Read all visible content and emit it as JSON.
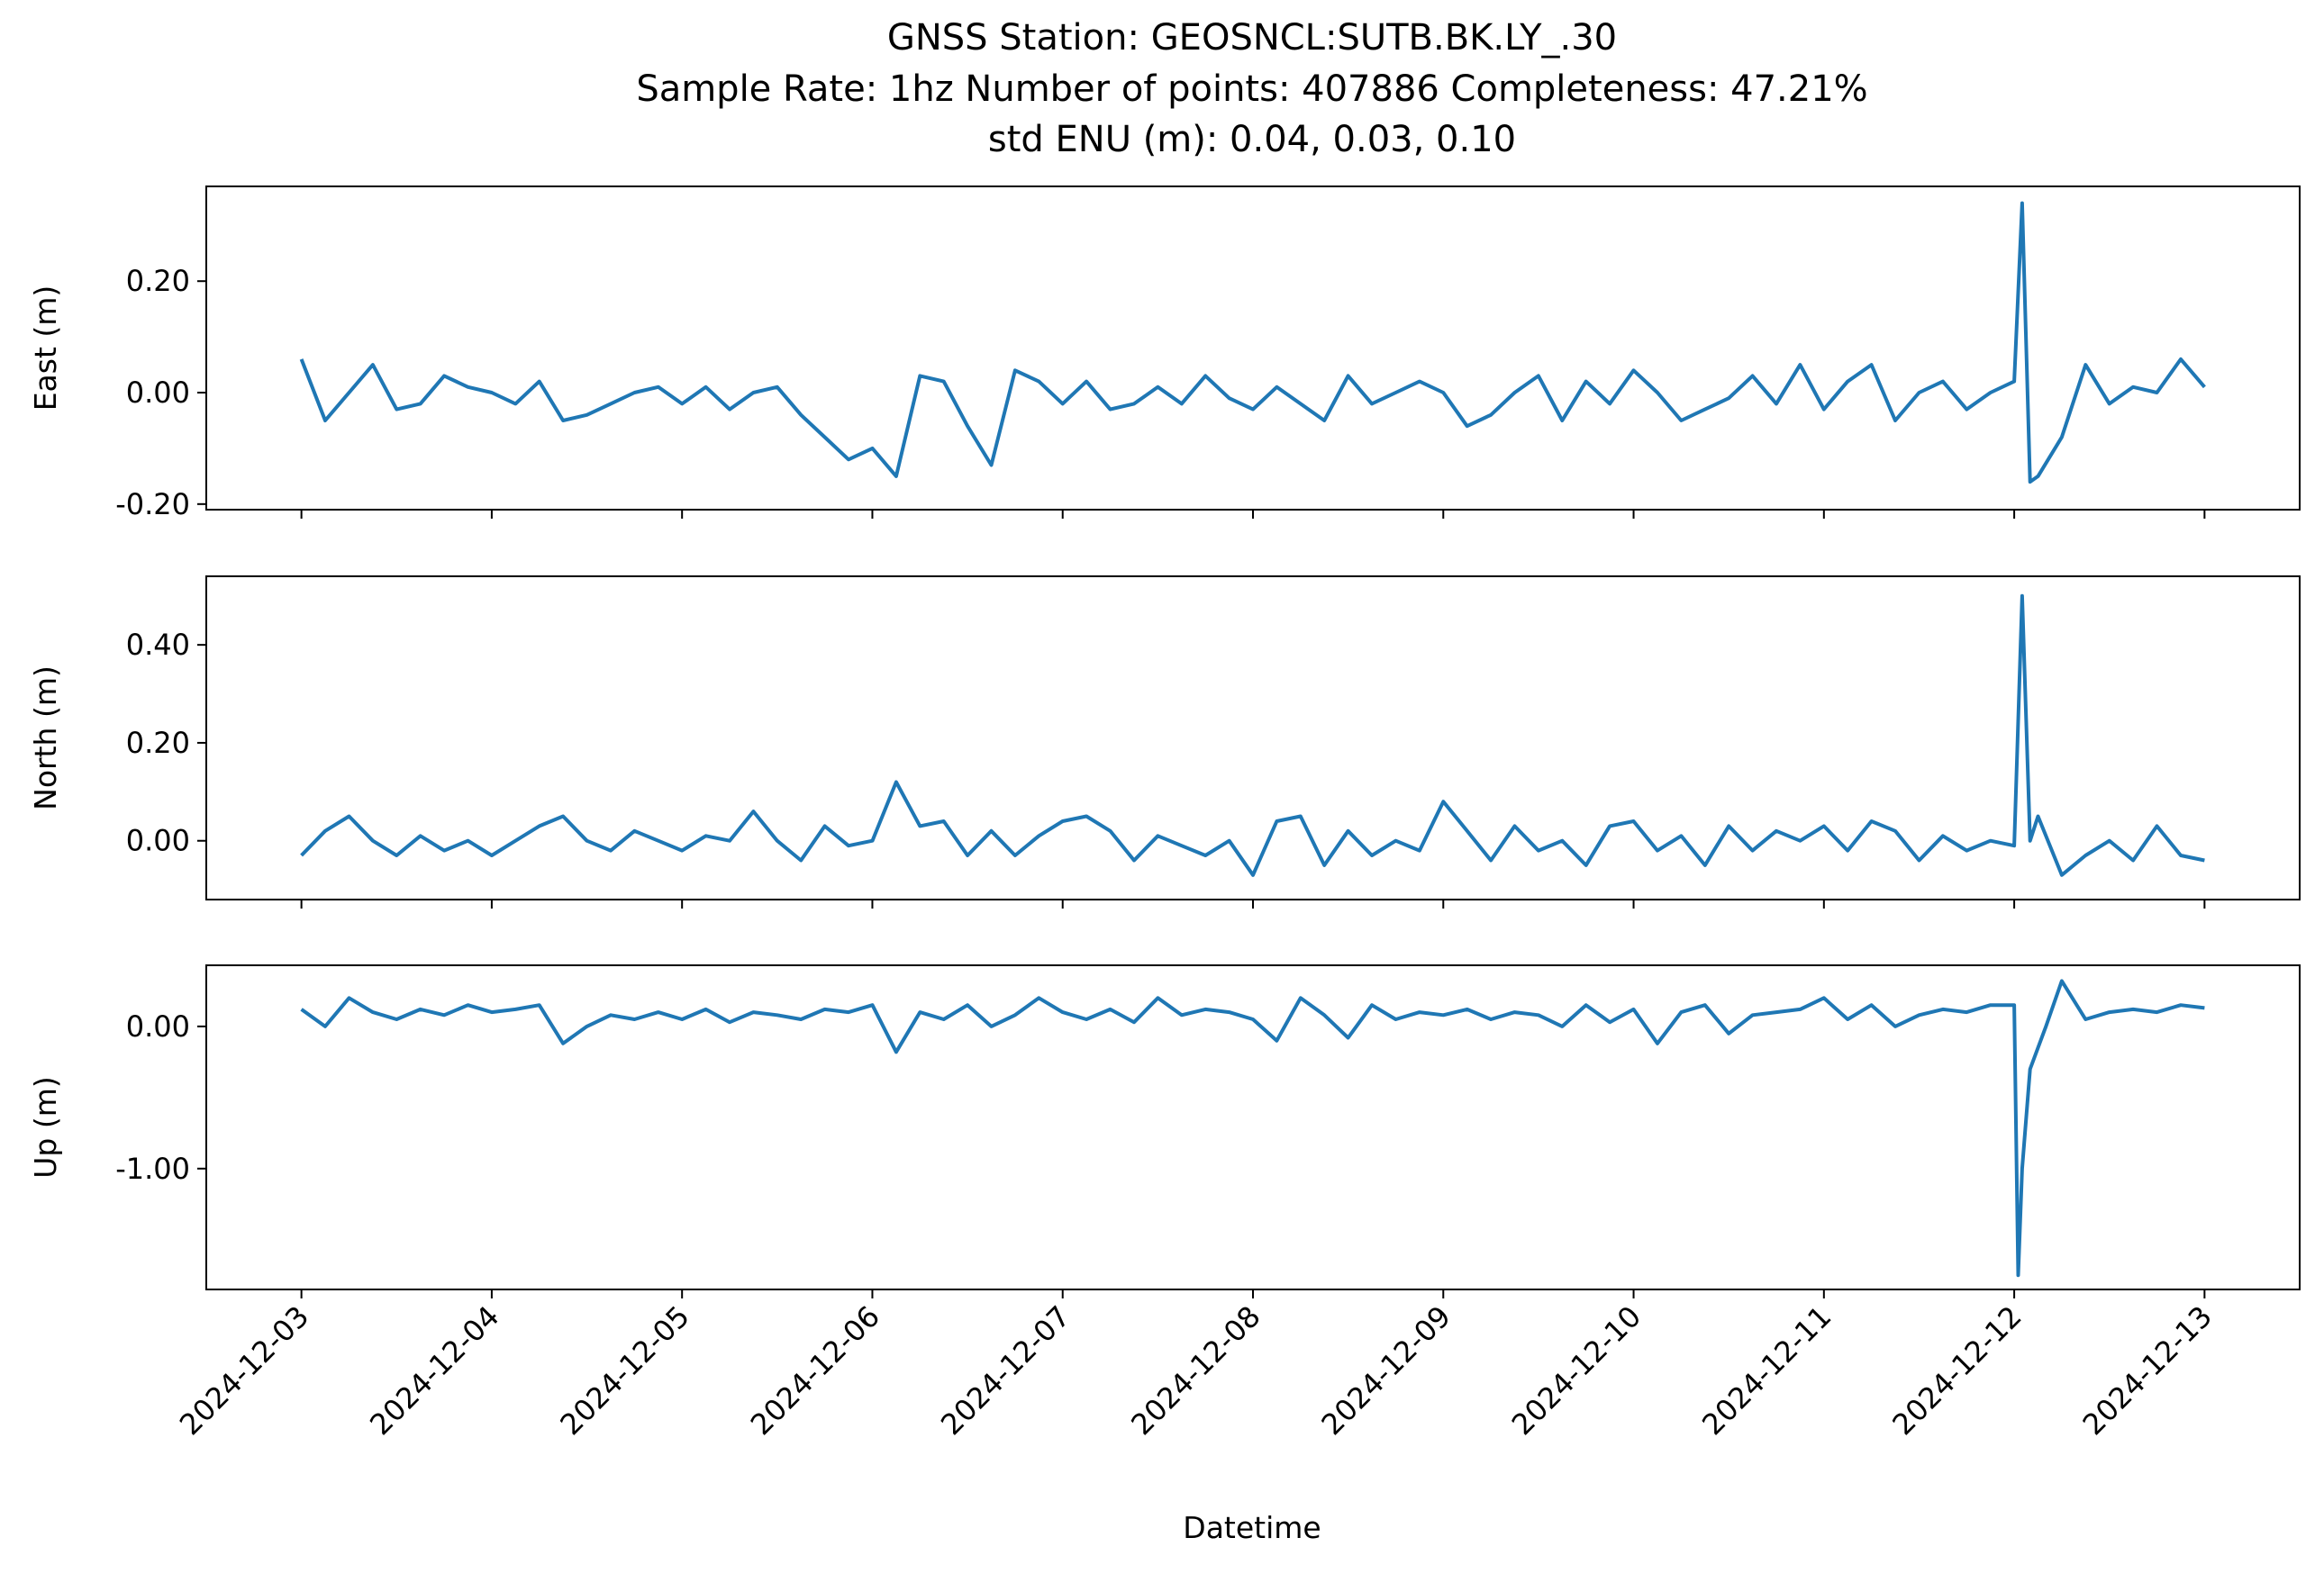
{
  "figure": {
    "title_lines": [
      "GNSS Station: GEOSNCL:SUTB.BK.LY_.30",
      "Sample Rate: 1hz   Number of points: 407886    Completeness:  47.21%",
      "std ENU (m):  0.04, 0.03, 0.10"
    ],
    "xlabel": "Datetime"
  },
  "chart_data": {
    "type": "line",
    "title": "GNSS Station: GEOSNCL:SUTB.BK.LY_.30",
    "subtitle": "Sample Rate: 1hz   Number of points: 407886    Completeness:  47.21%",
    "note": "std ENU (m):  0.04, 0.03, 0.10",
    "xlabel": "Datetime",
    "xlim": [
      "2024-12-02T12:00",
      "2024-12-13T12:00"
    ],
    "x_ticks": [
      "2024-12-03",
      "2024-12-04",
      "2024-12-05",
      "2024-12-06",
      "2024-12-07",
      "2024-12-08",
      "2024-12-09",
      "2024-12-10",
      "2024-12-11",
      "2024-12-12",
      "2024-12-13"
    ],
    "line_color": "#1f77b4",
    "grid": false,
    "panels": [
      {
        "ylabel": "East (m)",
        "ylim": [
          -0.21,
          0.37
        ],
        "y_ticks": [
          0.2,
          0.0,
          -0.2
        ],
        "y_tick_labels": [
          "0.20",
          "0.00",
          "-0.20"
        ],
        "x": [
          "2024-12-03T00:00",
          "2024-12-03T03:00",
          "2024-12-03T06:00",
          "2024-12-03T09:00",
          "2024-12-03T12:00",
          "2024-12-03T15:00",
          "2024-12-03T18:00",
          "2024-12-03T21:00",
          "2024-12-04T00:00",
          "2024-12-04T03:00",
          "2024-12-04T06:00",
          "2024-12-04T09:00",
          "2024-12-04T12:00",
          "2024-12-04T15:00",
          "2024-12-04T18:00",
          "2024-12-04T21:00",
          "2024-12-05T00:00",
          "2024-12-05T03:00",
          "2024-12-05T06:00",
          "2024-12-05T09:00",
          "2024-12-05T12:00",
          "2024-12-05T15:00",
          "2024-12-05T18:00",
          "2024-12-05T21:00",
          "2024-12-06T00:00",
          "2024-12-06T03:00",
          "2024-12-06T06:00",
          "2024-12-06T09:00",
          "2024-12-06T12:00",
          "2024-12-06T15:00",
          "2024-12-06T18:00",
          "2024-12-06T21:00",
          "2024-12-07T00:00",
          "2024-12-07T03:00",
          "2024-12-07T06:00",
          "2024-12-07T09:00",
          "2024-12-07T12:00",
          "2024-12-07T15:00",
          "2024-12-07T18:00",
          "2024-12-07T21:00",
          "2024-12-08T00:00",
          "2024-12-08T03:00",
          "2024-12-08T06:00",
          "2024-12-08T09:00",
          "2024-12-08T12:00",
          "2024-12-08T15:00",
          "2024-12-08T18:00",
          "2024-12-08T21:00",
          "2024-12-09T00:00",
          "2024-12-09T03:00",
          "2024-12-09T06:00",
          "2024-12-09T09:00",
          "2024-12-09T12:00",
          "2024-12-09T15:00",
          "2024-12-09T18:00",
          "2024-12-09T21:00",
          "2024-12-10T00:00",
          "2024-12-10T03:00",
          "2024-12-10T06:00",
          "2024-12-10T09:00",
          "2024-12-10T12:00",
          "2024-12-10T15:00",
          "2024-12-10T18:00",
          "2024-12-10T21:00",
          "2024-12-11T00:00",
          "2024-12-11T03:00",
          "2024-12-11T06:00",
          "2024-12-11T09:00",
          "2024-12-11T12:00",
          "2024-12-11T15:00",
          "2024-12-11T18:00",
          "2024-12-11T21:00",
          "2024-12-12T00:00",
          "2024-12-12T01:00",
          "2024-12-12T02:00",
          "2024-12-12T03:00",
          "2024-12-12T06:00",
          "2024-12-12T09:00",
          "2024-12-12T12:00",
          "2024-12-12T15:00",
          "2024-12-12T18:00",
          "2024-12-12T21:00",
          "2024-12-13T00:00"
        ],
        "y": [
          0.06,
          -0.05,
          0.0,
          0.05,
          -0.03,
          -0.02,
          0.03,
          0.01,
          0.0,
          -0.02,
          0.02,
          -0.05,
          -0.04,
          -0.02,
          0.0,
          0.01,
          -0.02,
          0.01,
          -0.03,
          0.0,
          0.01,
          -0.04,
          -0.08,
          -0.12,
          -0.1,
          -0.15,
          0.03,
          0.02,
          -0.06,
          -0.13,
          0.04,
          0.02,
          -0.02,
          0.02,
          -0.03,
          -0.02,
          0.01,
          -0.02,
          0.03,
          -0.01,
          -0.03,
          0.01,
          -0.02,
          -0.05,
          0.03,
          -0.02,
          0.0,
          0.02,
          0.0,
          -0.06,
          -0.04,
          0.0,
          0.03,
          -0.05,
          0.02,
          -0.02,
          0.04,
          0.0,
          -0.05,
          -0.03,
          -0.01,
          0.03,
          -0.02,
          0.05,
          -0.03,
          0.02,
          0.05,
          -0.05,
          0.0,
          0.02,
          -0.03,
          0.0,
          0.02,
          0.34,
          -0.16,
          -0.15,
          -0.08,
          0.05,
          -0.02,
          0.01,
          0.0,
          0.06,
          0.01
        ]
      },
      {
        "ylabel": "North (m)",
        "ylim": [
          -0.12,
          0.54
        ],
        "y_ticks": [
          0.4,
          0.2,
          0.0
        ],
        "y_tick_labels": [
          "0.40",
          "0.20",
          "0.00"
        ],
        "x": [
          "2024-12-03T00:00",
          "2024-12-03T03:00",
          "2024-12-03T06:00",
          "2024-12-03T09:00",
          "2024-12-03T12:00",
          "2024-12-03T15:00",
          "2024-12-03T18:00",
          "2024-12-03T21:00",
          "2024-12-04T00:00",
          "2024-12-04T03:00",
          "2024-12-04T06:00",
          "2024-12-04T09:00",
          "2024-12-04T12:00",
          "2024-12-04T15:00",
          "2024-12-04T18:00",
          "2024-12-04T21:00",
          "2024-12-05T00:00",
          "2024-12-05T03:00",
          "2024-12-05T06:00",
          "2024-12-05T09:00",
          "2024-12-05T12:00",
          "2024-12-05T15:00",
          "2024-12-05T18:00",
          "2024-12-05T21:00",
          "2024-12-06T00:00",
          "2024-12-06T03:00",
          "2024-12-06T06:00",
          "2024-12-06T09:00",
          "2024-12-06T12:00",
          "2024-12-06T15:00",
          "2024-12-06T18:00",
          "2024-12-06T21:00",
          "2024-12-07T00:00",
          "2024-12-07T03:00",
          "2024-12-07T06:00",
          "2024-12-07T09:00",
          "2024-12-07T12:00",
          "2024-12-07T15:00",
          "2024-12-07T18:00",
          "2024-12-07T21:00",
          "2024-12-08T00:00",
          "2024-12-08T03:00",
          "2024-12-08T06:00",
          "2024-12-08T09:00",
          "2024-12-08T12:00",
          "2024-12-08T15:00",
          "2024-12-08T18:00",
          "2024-12-08T21:00",
          "2024-12-09T00:00",
          "2024-12-09T03:00",
          "2024-12-09T06:00",
          "2024-12-09T09:00",
          "2024-12-09T12:00",
          "2024-12-09T15:00",
          "2024-12-09T18:00",
          "2024-12-09T21:00",
          "2024-12-10T00:00",
          "2024-12-10T03:00",
          "2024-12-10T06:00",
          "2024-12-10T09:00",
          "2024-12-10T12:00",
          "2024-12-10T15:00",
          "2024-12-10T18:00",
          "2024-12-10T21:00",
          "2024-12-11T00:00",
          "2024-12-11T03:00",
          "2024-12-11T06:00",
          "2024-12-11T09:00",
          "2024-12-11T12:00",
          "2024-12-11T15:00",
          "2024-12-11T18:00",
          "2024-12-11T21:00",
          "2024-12-12T00:00",
          "2024-12-12T01:00",
          "2024-12-12T02:00",
          "2024-12-12T03:00",
          "2024-12-12T06:00",
          "2024-12-12T09:00",
          "2024-12-12T12:00",
          "2024-12-12T15:00",
          "2024-12-12T18:00",
          "2024-12-12T21:00",
          "2024-12-13T00:00"
        ],
        "y": [
          -0.03,
          0.02,
          0.05,
          0.0,
          -0.03,
          0.01,
          -0.02,
          0.0,
          -0.03,
          0.0,
          0.03,
          0.05,
          0.0,
          -0.02,
          0.02,
          0.0,
          -0.02,
          0.01,
          0.0,
          0.06,
          0.0,
          -0.04,
          0.03,
          -0.01,
          0.0,
          0.12,
          0.03,
          0.04,
          -0.03,
          0.02,
          -0.03,
          0.01,
          0.04,
          0.05,
          0.02,
          -0.04,
          0.01,
          -0.01,
          -0.03,
          0.0,
          -0.07,
          0.04,
          0.05,
          -0.05,
          0.02,
          -0.03,
          0.0,
          -0.02,
          0.08,
          0.02,
          -0.04,
          0.03,
          -0.02,
          0.0,
          -0.05,
          0.03,
          0.04,
          -0.02,
          0.01,
          -0.05,
          0.03,
          -0.02,
          0.02,
          0.0,
          0.03,
          -0.02,
          0.04,
          0.02,
          -0.04,
          0.01,
          -0.02,
          0.0,
          -0.01,
          0.5,
          0.0,
          0.05,
          -0.07,
          -0.03,
          0.0,
          -0.04,
          0.03,
          -0.03,
          -0.04
        ]
      },
      {
        "ylabel": "Up (m)",
        "ylim": [
          -1.85,
          0.43
        ],
        "y_ticks": [
          0.0,
          -1.0
        ],
        "y_tick_labels": [
          "0.00",
          "-1.00"
        ],
        "x": [
          "2024-12-03T00:00",
          "2024-12-03T03:00",
          "2024-12-03T06:00",
          "2024-12-03T09:00",
          "2024-12-03T12:00",
          "2024-12-03T15:00",
          "2024-12-03T18:00",
          "2024-12-03T21:00",
          "2024-12-04T00:00",
          "2024-12-04T03:00",
          "2024-12-04T06:00",
          "2024-12-04T09:00",
          "2024-12-04T12:00",
          "2024-12-04T15:00",
          "2024-12-04T18:00",
          "2024-12-04T21:00",
          "2024-12-05T00:00",
          "2024-12-05T03:00",
          "2024-12-05T06:00",
          "2024-12-05T09:00",
          "2024-12-05T12:00",
          "2024-12-05T15:00",
          "2024-12-05T18:00",
          "2024-12-05T21:00",
          "2024-12-06T00:00",
          "2024-12-06T03:00",
          "2024-12-06T06:00",
          "2024-12-06T09:00",
          "2024-12-06T12:00",
          "2024-12-06T15:00",
          "2024-12-06T18:00",
          "2024-12-06T21:00",
          "2024-12-07T00:00",
          "2024-12-07T03:00",
          "2024-12-07T06:00",
          "2024-12-07T09:00",
          "2024-12-07T12:00",
          "2024-12-07T15:00",
          "2024-12-07T18:00",
          "2024-12-07T21:00",
          "2024-12-08T00:00",
          "2024-12-08T03:00",
          "2024-12-08T06:00",
          "2024-12-08T09:00",
          "2024-12-08T12:00",
          "2024-12-08T15:00",
          "2024-12-08T18:00",
          "2024-12-08T21:00",
          "2024-12-09T00:00",
          "2024-12-09T03:00",
          "2024-12-09T06:00",
          "2024-12-09T09:00",
          "2024-12-09T12:00",
          "2024-12-09T15:00",
          "2024-12-09T18:00",
          "2024-12-09T21:00",
          "2024-12-10T00:00",
          "2024-12-10T03:00",
          "2024-12-10T06:00",
          "2024-12-10T09:00",
          "2024-12-10T12:00",
          "2024-12-10T15:00",
          "2024-12-10T18:00",
          "2024-12-10T21:00",
          "2024-12-11T00:00",
          "2024-12-11T03:00",
          "2024-12-11T06:00",
          "2024-12-11T09:00",
          "2024-12-11T12:00",
          "2024-12-11T15:00",
          "2024-12-11T18:00",
          "2024-12-11T21:00",
          "2024-12-12T00:00",
          "2024-12-12T00:30",
          "2024-12-12T01:00",
          "2024-12-12T02:00",
          "2024-12-12T04:00",
          "2024-12-12T06:00",
          "2024-12-12T09:00",
          "2024-12-12T12:00",
          "2024-12-12T15:00",
          "2024-12-12T18:00",
          "2024-12-12T21:00",
          "2024-12-13T00:00"
        ],
        "y": [
          0.12,
          0.0,
          0.2,
          0.1,
          0.05,
          0.12,
          0.08,
          0.15,
          0.1,
          0.12,
          0.15,
          -0.12,
          0.0,
          0.08,
          0.05,
          0.1,
          0.05,
          0.12,
          0.03,
          0.1,
          0.08,
          0.05,
          0.12,
          0.1,
          0.15,
          -0.18,
          0.1,
          0.05,
          0.15,
          0.0,
          0.08,
          0.2,
          0.1,
          0.05,
          0.12,
          0.03,
          0.2,
          0.08,
          0.12,
          0.1,
          0.05,
          -0.1,
          0.2,
          0.08,
          -0.08,
          0.15,
          0.05,
          0.1,
          0.08,
          0.12,
          0.05,
          0.1,
          0.08,
          0.0,
          0.15,
          0.03,
          0.12,
          -0.12,
          0.1,
          0.15,
          -0.05,
          0.08,
          0.1,
          0.12,
          0.2,
          0.05,
          0.15,
          0.0,
          0.08,
          0.12,
          0.1,
          0.15,
          0.15,
          -1.75,
          -1.0,
          -0.3,
          0.0,
          0.32,
          0.05,
          0.1,
          0.12,
          0.1,
          0.15,
          0.13
        ]
      }
    ]
  }
}
